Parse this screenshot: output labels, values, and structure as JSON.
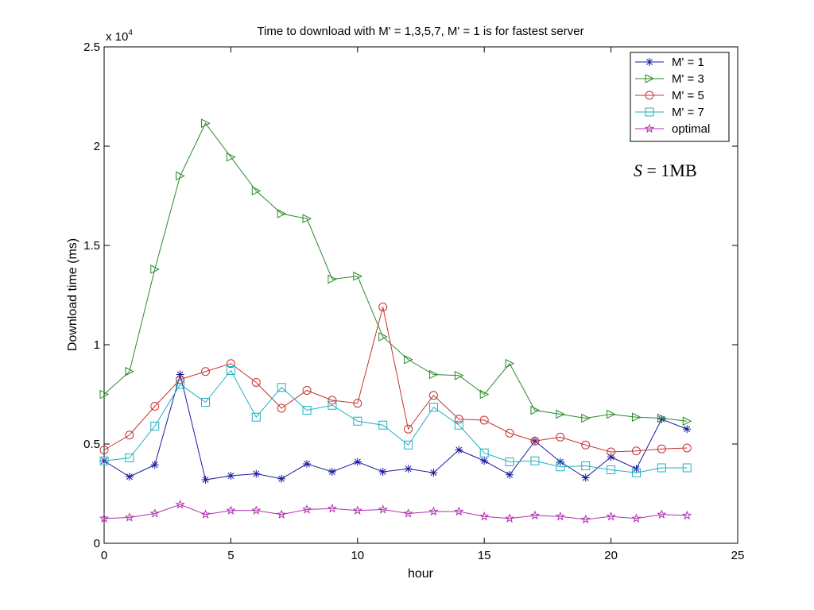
{
  "chart_data": {
    "type": "line",
    "title": "Time to download with M' = 1,3,5,7, M' = 1 is for fastest server",
    "xlabel": "hour",
    "ylabel": "Download time (ms)",
    "y_exponent_label": "x 10",
    "y_exponent_power": "4",
    "xlim": [
      0,
      25
    ],
    "ylim": [
      0,
      25000
    ],
    "x_ticks": [
      0,
      5,
      10,
      15,
      20,
      25
    ],
    "x_tick_labels": [
      "0",
      "5",
      "10",
      "15",
      "20",
      "25"
    ],
    "y_ticks": [
      0,
      5000,
      10000,
      15000,
      20000,
      25000
    ],
    "y_tick_labels": [
      "0",
      "0.5",
      "1",
      "1.5",
      "2",
      "2.5"
    ],
    "grid": false,
    "legend_position": "top-right",
    "annotation": {
      "italic": "S",
      "rest": " = 1MB"
    },
    "x": [
      0,
      1,
      2,
      3,
      4,
      5,
      6,
      7,
      8,
      9,
      10,
      11,
      12,
      13,
      14,
      15,
      16,
      17,
      18,
      19,
      20,
      21,
      22,
      23
    ],
    "series": [
      {
        "name": "M' = 1",
        "color": "#1a1aa0",
        "marker": "asterisk",
        "values": [
          4150,
          3350,
          3950,
          8500,
          3200,
          3400,
          3500,
          3250,
          4000,
          3600,
          4100,
          3600,
          3750,
          3550,
          4700,
          4150,
          3450,
          5150,
          4100,
          3300,
          4350,
          3750,
          6250,
          5750
        ]
      },
      {
        "name": "M' = 3",
        "color": "#2a8a2a",
        "marker": "triangle-right",
        "values": [
          7500,
          8650,
          13800,
          18500,
          21150,
          19450,
          17750,
          16600,
          16350,
          13300,
          13450,
          10400,
          9250,
          8500,
          8450,
          7500,
          9050,
          6700,
          6500,
          6300,
          6500,
          6350,
          6300,
          6150
        ]
      },
      {
        "name": "M' = 5",
        "color": "#c83030",
        "marker": "circle",
        "values": [
          4700,
          5450,
          6900,
          8250,
          8650,
          9050,
          8100,
          6800,
          7700,
          7200,
          7050,
          11900,
          5750,
          7450,
          6250,
          6200,
          5550,
          5150,
          5350,
          4950,
          4600,
          4650,
          4750,
          4800
        ]
      },
      {
        "name": "M' = 7",
        "color": "#20b0c0",
        "marker": "square",
        "values": [
          4150,
          4300,
          5900,
          8000,
          7100,
          8700,
          6350,
          7850,
          6700,
          6950,
          6150,
          5950,
          4950,
          6850,
          5950,
          4550,
          4100,
          4150,
          3850,
          3900,
          3700,
          3550,
          3800,
          3800
        ]
      },
      {
        "name": "optimal",
        "color": "#b030b0",
        "marker": "star",
        "values": [
          1250,
          1300,
          1500,
          1950,
          1450,
          1650,
          1650,
          1450,
          1700,
          1750,
          1650,
          1700,
          1500,
          1600,
          1600,
          1350,
          1250,
          1400,
          1350,
          1200,
          1350,
          1250,
          1450,
          1400
        ]
      }
    ]
  }
}
